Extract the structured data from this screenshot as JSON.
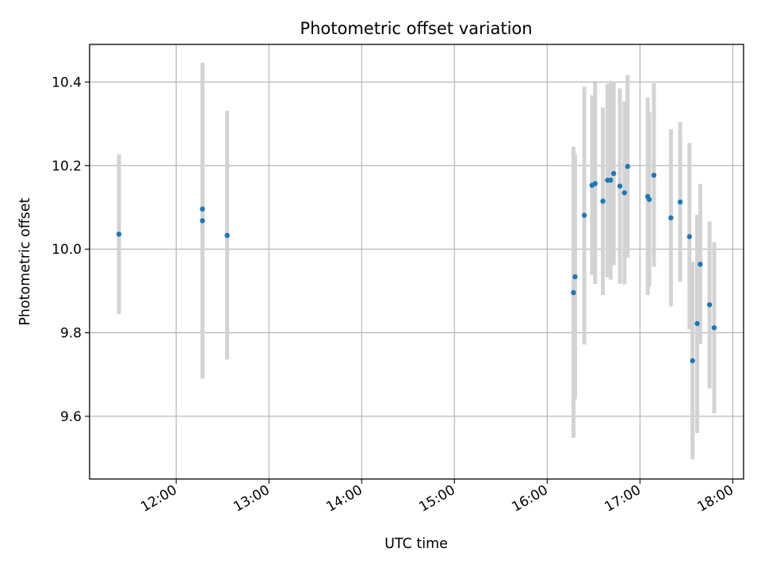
{
  "chart_data": {
    "type": "scatter",
    "title": "Photometric offset variation",
    "xlabel": "UTC time",
    "ylabel": "Photometric offset",
    "xlim": [
      "11:04",
      "18:07"
    ],
    "ylim": [
      9.45,
      10.49
    ],
    "x_ticks": [
      "12:00",
      "13:00",
      "14:00",
      "15:00",
      "16:00",
      "17:00",
      "18:00"
    ],
    "y_ticks": [
      "9.6",
      "9.8",
      "10.0",
      "10.2",
      "10.4"
    ],
    "grid": true,
    "colors": {
      "point": "#1f77b4",
      "errorbar": "#d3d3d3",
      "grid": "#b0b0b0"
    },
    "series": [
      {
        "points": [
          {
            "x": "11:23",
            "y": 10.036,
            "ylo": 9.845,
            "yhi": 10.227
          },
          {
            "x": "12:17",
            "y": 10.096,
            "ylo": 9.757,
            "yhi": 10.435
          },
          {
            "x": "12:17",
            "y": 10.068,
            "ylo": 9.69,
            "yhi": 10.446
          },
          {
            "x": "12:33",
            "y": 10.033,
            "ylo": 9.736,
            "yhi": 10.331
          },
          {
            "x": "16:17",
            "y": 9.896,
            "ylo": 9.549,
            "yhi": 10.245
          },
          {
            "x": "16:18",
            "y": 9.934,
            "ylo": 9.641,
            "yhi": 10.228
          },
          {
            "x": "16:24",
            "y": 10.081,
            "ylo": 9.772,
            "yhi": 10.389
          },
          {
            "x": "16:29",
            "y": 10.153,
            "ylo": 9.938,
            "yhi": 10.368
          },
          {
            "x": "16:31",
            "y": 10.157,
            "ylo": 9.917,
            "yhi": 10.399
          },
          {
            "x": "16:36",
            "y": 10.115,
            "ylo": 9.89,
            "yhi": 10.339
          },
          {
            "x": "16:39",
            "y": 10.165,
            "ylo": 9.933,
            "yhi": 10.396
          },
          {
            "x": "16:41",
            "y": 10.165,
            "ylo": 9.927,
            "yhi": 10.403
          },
          {
            "x": "16:43",
            "y": 10.181,
            "ylo": 9.962,
            "yhi": 10.4
          },
          {
            "x": "16:47",
            "y": 10.151,
            "ylo": 9.917,
            "yhi": 10.385
          },
          {
            "x": "16:50",
            "y": 10.135,
            "ylo": 9.916,
            "yhi": 10.354
          },
          {
            "x": "16:52",
            "y": 10.198,
            "ylo": 9.98,
            "yhi": 10.417
          },
          {
            "x": "17:05",
            "y": 10.126,
            "ylo": 9.89,
            "yhi": 10.363
          },
          {
            "x": "17:06",
            "y": 10.119,
            "ylo": 9.91,
            "yhi": 10.328
          },
          {
            "x": "17:09",
            "y": 10.177,
            "ylo": 9.958,
            "yhi": 10.397
          },
          {
            "x": "17:20",
            "y": 10.075,
            "ylo": 9.863,
            "yhi": 10.287
          },
          {
            "x": "17:26",
            "y": 10.113,
            "ylo": 9.922,
            "yhi": 10.304
          },
          {
            "x": "17:32",
            "y": 10.03,
            "ylo": 9.808,
            "yhi": 10.254
          },
          {
            "x": "17:34",
            "y": 9.733,
            "ylo": 9.497,
            "yhi": 9.97
          },
          {
            "x": "17:37",
            "y": 9.822,
            "ylo": 9.56,
            "yhi": 10.082
          },
          {
            "x": "17:39",
            "y": 9.964,
            "ylo": 9.773,
            "yhi": 10.156
          },
          {
            "x": "17:45",
            "y": 9.867,
            "ylo": 9.667,
            "yhi": 10.066
          },
          {
            "x": "17:48",
            "y": 9.812,
            "ylo": 9.607,
            "yhi": 10.017
          }
        ]
      }
    ]
  }
}
